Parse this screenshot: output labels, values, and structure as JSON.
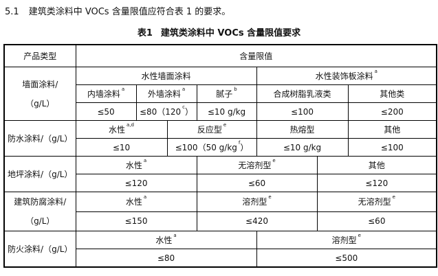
{
  "clause": {
    "number": "5.1",
    "text": "建筑类涂料中 VOCs 含量限值应符合表 1 的要求。"
  },
  "table_caption": {
    "number": "表1",
    "title": "建筑类涂料中 VOCs 含量限值要求"
  },
  "header": {
    "product_type": "产品类型",
    "limit": "含量限值"
  },
  "wall": {
    "category_line1": "墙面涂料/",
    "category_line2": "（g/L）",
    "group1": "水性墙面涂料",
    "group2": "水性装饰板涂料",
    "group2_sup": "a",
    "types": [
      {
        "label": "内墙涂料",
        "sup": "a",
        "value": "≤50"
      },
      {
        "label": "外墙涂料",
        "sup": "a",
        "value": "≤80（120",
        "value_sup": "c",
        "value_tail": "）"
      },
      {
        "label": "腻子",
        "sup": "b",
        "value": "≤10 g/kg"
      },
      {
        "label": "合成树脂乳液类",
        "value": "≤100"
      },
      {
        "label": "其他类",
        "value": "≤200"
      }
    ]
  },
  "waterproof": {
    "category": "防水涂料/（g/L）",
    "types": [
      {
        "label": "水性",
        "sup": "a,d",
        "value": "≤10"
      },
      {
        "label": "反应型",
        "sup": "e",
        "value": "≤100（50 g/kg",
        "value_sup": "f",
        "value_tail": "）"
      },
      {
        "label": "热熔型",
        "value": "≤10 g/kg"
      },
      {
        "label": "其他",
        "value": "≤100"
      }
    ]
  },
  "floor": {
    "category": "地坪涂料/（g/L）",
    "types": [
      {
        "label": "水性",
        "sup": "a",
        "value": "≤120"
      },
      {
        "label": "无溶剂型",
        "sup": "e",
        "value": "≤60"
      },
      {
        "label": "其他",
        "value": "≤120"
      }
    ]
  },
  "anticorrosion": {
    "category_line1": "建筑防腐涂料/",
    "category_line2": "（g/L）",
    "types": [
      {
        "label": "水性",
        "sup": "a",
        "value": "≤150"
      },
      {
        "label": "溶剂型",
        "sup": "e",
        "value": "≤420"
      },
      {
        "label": "无溶剂型",
        "sup": "e",
        "value": "≤60"
      }
    ]
  },
  "fireproof": {
    "category": "防火涂料/（g/L）",
    "types": [
      {
        "label": "水性",
        "sup": "a",
        "value": "≤80"
      },
      {
        "label": "溶剂型",
        "sup": "e",
        "value": "≤500"
      }
    ]
  }
}
